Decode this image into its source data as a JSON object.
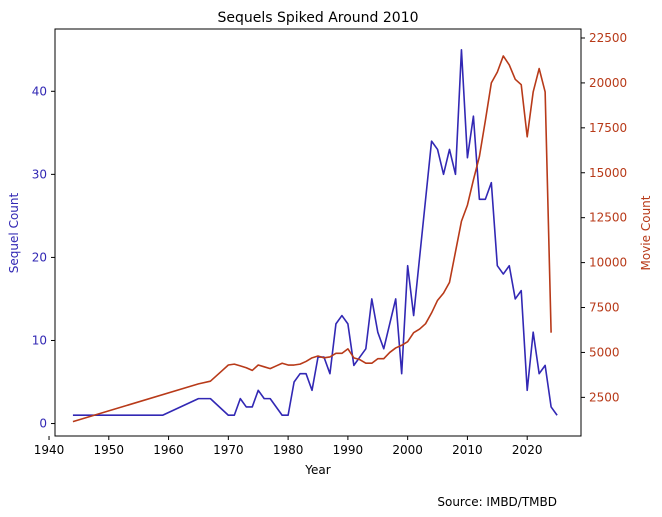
{
  "chart_data": {
    "type": "line",
    "title": "Sequels Spiked Around 2010",
    "xlabel": "Year",
    "ylabel_left": "Sequel Count",
    "ylabel_right": "Movie Count",
    "source_note": "Source: IMBD/TMBD",
    "xlim": [
      1941,
      2029
    ],
    "ylim_left": [
      -1.5,
      47.5
    ],
    "ylim_right": [
      350,
      23000
    ],
    "x_ticks": [
      1940,
      1950,
      1960,
      1970,
      1980,
      1990,
      2000,
      2010,
      2020
    ],
    "y_left_ticks": [
      0,
      10,
      20,
      30,
      40
    ],
    "y_right_ticks": [
      2500,
      5000,
      7500,
      10000,
      12500,
      15000,
      17500,
      20000,
      22500
    ],
    "colors": {
      "sequel": "#3228b4",
      "movie": "#b83a19",
      "axis": "#000000"
    },
    "series": [
      {
        "name": "Sequel Count",
        "axis": "left",
        "color": "#3228b4",
        "points": [
          [
            1944,
            1
          ],
          [
            1959,
            1
          ],
          [
            1965,
            3
          ],
          [
            1967,
            3
          ],
          [
            1970,
            1
          ],
          [
            1971,
            1
          ],
          [
            1972,
            3
          ],
          [
            1973,
            2
          ],
          [
            1974,
            2
          ],
          [
            1975,
            4
          ],
          [
            1976,
            3
          ],
          [
            1977,
            3
          ],
          [
            1979,
            1
          ],
          [
            1980,
            1
          ],
          [
            1981,
            5
          ],
          [
            1982,
            6
          ],
          [
            1983,
            6
          ],
          [
            1984,
            4
          ],
          [
            1985,
            8
          ],
          [
            1986,
            8
          ],
          [
            1987,
            6
          ],
          [
            1988,
            12
          ],
          [
            1989,
            13
          ],
          [
            1990,
            12
          ],
          [
            1991,
            7
          ],
          [
            1992,
            8
          ],
          [
            1993,
            9
          ],
          [
            1994,
            15
          ],
          [
            1995,
            11
          ],
          [
            1996,
            9
          ],
          [
            1997,
            12
          ],
          [
            1998,
            15
          ],
          [
            1999,
            6
          ],
          [
            2000,
            19
          ],
          [
            2001,
            13
          ],
          [
            2002,
            20
          ],
          [
            2003,
            27
          ],
          [
            2004,
            34
          ],
          [
            2005,
            33
          ],
          [
            2006,
            30
          ],
          [
            2007,
            33
          ],
          [
            2008,
            30
          ],
          [
            2009,
            45
          ],
          [
            2010,
            32
          ],
          [
            2011,
            37
          ],
          [
            2012,
            27
          ],
          [
            2013,
            27
          ],
          [
            2014,
            29
          ],
          [
            2015,
            19
          ],
          [
            2016,
            18
          ],
          [
            2017,
            19
          ],
          [
            2018,
            15
          ],
          [
            2019,
            16
          ],
          [
            2020,
            4
          ],
          [
            2021,
            11
          ],
          [
            2022,
            6
          ],
          [
            2023,
            7
          ],
          [
            2024,
            2
          ],
          [
            2025,
            1
          ]
        ]
      },
      {
        "name": "Movie Count",
        "axis": "right",
        "color": "#b83a19",
        "points": [
          [
            1944,
            1150
          ],
          [
            1965,
            3250
          ],
          [
            1967,
            3400
          ],
          [
            1969,
            4000
          ],
          [
            1970,
            4300
          ],
          [
            1971,
            4350
          ],
          [
            1972,
            4250
          ],
          [
            1973,
            4150
          ],
          [
            1974,
            4000
          ],
          [
            1975,
            4300
          ],
          [
            1976,
            4200
          ],
          [
            1977,
            4100
          ],
          [
            1978,
            4250
          ],
          [
            1979,
            4400
          ],
          [
            1980,
            4300
          ],
          [
            1981,
            4300
          ],
          [
            1982,
            4350
          ],
          [
            1983,
            4500
          ],
          [
            1984,
            4700
          ],
          [
            1985,
            4800
          ],
          [
            1986,
            4700
          ],
          [
            1987,
            4750
          ],
          [
            1988,
            4950
          ],
          [
            1989,
            4950
          ],
          [
            1990,
            5200
          ],
          [
            1991,
            4700
          ],
          [
            1992,
            4600
          ],
          [
            1993,
            4400
          ],
          [
            1994,
            4400
          ],
          [
            1995,
            4650
          ],
          [
            1996,
            4650
          ],
          [
            1997,
            5000
          ],
          [
            1998,
            5250
          ],
          [
            1999,
            5400
          ],
          [
            2000,
            5600
          ],
          [
            2001,
            6100
          ],
          [
            2002,
            6300
          ],
          [
            2003,
            6600
          ],
          [
            2004,
            7200
          ],
          [
            2005,
            7900
          ],
          [
            2006,
            8300
          ],
          [
            2007,
            8900
          ],
          [
            2008,
            10600
          ],
          [
            2009,
            12300
          ],
          [
            2010,
            13200
          ],
          [
            2011,
            14600
          ],
          [
            2012,
            15900
          ],
          [
            2013,
            17900
          ],
          [
            2014,
            20000
          ],
          [
            2015,
            20600
          ],
          [
            2016,
            21500
          ],
          [
            2017,
            21000
          ],
          [
            2018,
            20200
          ],
          [
            2019,
            19900
          ],
          [
            2020,
            17000
          ],
          [
            2021,
            19500
          ],
          [
            2022,
            20800
          ],
          [
            2023,
            19500
          ],
          [
            2024,
            6100
          ]
        ]
      }
    ]
  }
}
